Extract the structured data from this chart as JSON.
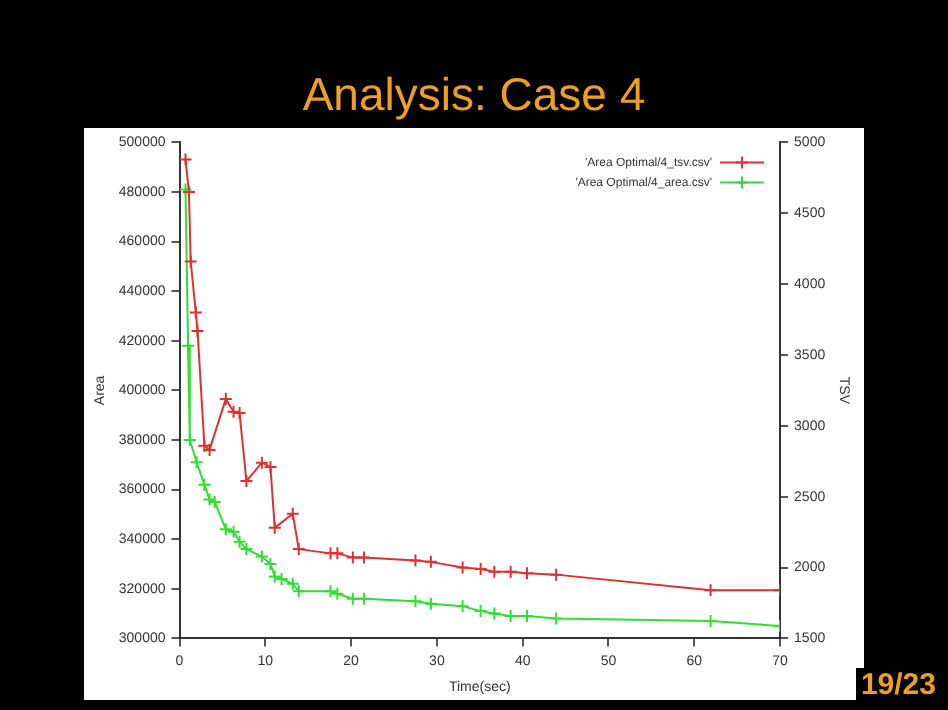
{
  "chart_data": {
    "type": "line",
    "title": "Analysis: Case 4",
    "xlabel": "Time(sec)",
    "ylabel": "Area",
    "y2label": "TSV",
    "annotations": [
      "19/23"
    ],
    "xlim": [
      0,
      70
    ],
    "xticks": [
      0,
      10,
      20,
      30,
      40,
      50,
      60,
      70
    ],
    "ylim": [
      300000,
      500000
    ],
    "yticks": [
      300000,
      320000,
      340000,
      360000,
      380000,
      400000,
      420000,
      440000,
      460000,
      480000,
      500000
    ],
    "y2lim": [
      1500,
      5000
    ],
    "y2ticks": [
      1500,
      2000,
      2500,
      3000,
      3500,
      4000,
      4500,
      5000
    ],
    "grid": false,
    "legend": "top right",
    "marker": "cross",
    "line_style": "solid",
    "series": [
      {
        "name": "'Area Optimal/4_tsv.csv'",
        "color": "#e03030",
        "axis": "y2",
        "x": [
          0.7,
          1.1,
          1.3,
          1.9,
          2.1,
          2.9,
          3.5,
          5.4,
          6.3,
          7.0,
          7.8,
          9.6,
          10.6,
          11.1,
          13.2,
          13.9,
          17.6,
          18.4,
          20.2,
          21.5,
          27.5,
          29.3,
          33.0,
          35.1,
          36.7,
          38.6,
          40.5,
          43.9,
          61.9,
          70
        ],
        "values": [
          4880,
          4650,
          4160,
          3800,
          3670,
          2860,
          2830,
          3190,
          3100,
          3090,
          2610,
          2740,
          2710,
          2280,
          2380,
          2130,
          2100,
          2100,
          2070,
          2070,
          2050,
          2040,
          2000,
          1990,
          1970,
          1970,
          1960,
          1950,
          1840,
          1840
        ]
      },
      {
        "name": "'Area Optimal/4_area.csv'",
        "color": "#30e030",
        "axis": "y",
        "x": [
          0.7,
          1.0,
          1.2,
          2.0,
          2.9,
          3.5,
          4.1,
          5.4,
          6.3,
          7.0,
          7.8,
          9.6,
          10.6,
          11.1,
          11.9,
          13.2,
          13.9,
          17.6,
          18.4,
          20.2,
          21.5,
          27.5,
          29.3,
          33.0,
          35.1,
          36.7,
          38.6,
          40.5,
          43.9,
          61.9,
          70
        ],
        "values": [
          481000,
          418000,
          380000,
          371000,
          362000,
          356000,
          355000,
          344000,
          343000,
          339000,
          336000,
          333000,
          330000,
          325000,
          324000,
          322000,
          319000,
          319000,
          318000,
          316000,
          316000,
          315000,
          314000,
          313000,
          311000,
          310000,
          309000,
          309000,
          308000,
          307000,
          305000
        ]
      }
    ]
  }
}
